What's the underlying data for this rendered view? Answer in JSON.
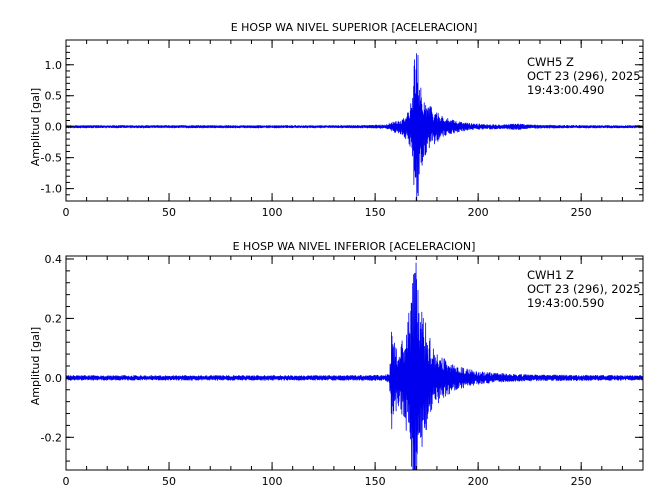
{
  "colors": {
    "trace": "#0000ee",
    "axes": "#000000",
    "background": "#ffffff"
  },
  "chart_data": [
    {
      "type": "line",
      "title": "E HOSP WA NIVEL SUPERIOR [ACELERACION]",
      "ylabel": "Amplitud [gal]",
      "xlabel": "",
      "xlim": [
        0,
        280
      ],
      "ylim": [
        -1.2,
        1.4
      ],
      "xticks": [
        0,
        50,
        100,
        150,
        200,
        250
      ],
      "xtick_labels": [
        "0",
        "50",
        "100",
        "150",
        "200",
        "250"
      ],
      "yticks": [
        -1.0,
        -0.5,
        0.0,
        0.5,
        1.0
      ],
      "ytick_labels": [
        "-1.0",
        "-0.5",
        "0.0",
        "0.5",
        "1.0"
      ],
      "grid": false,
      "info": {
        "station": "CWH5   Z",
        "date": "OCT 23 (296), 2025",
        "time": "19:43:00.490"
      },
      "series": [
        {
          "x": [
            0,
            20,
            40,
            60,
            80,
            100,
            120,
            140,
            155,
            158,
            160,
            163,
            166,
            168,
            169,
            170,
            171,
            172,
            173,
            175,
            178,
            182,
            186,
            190,
            195,
            200,
            205,
            210,
            215,
            218,
            222,
            230,
            245,
            260,
            280
          ],
          "envelope": [
            0.02,
            0.02,
            0.02,
            0.02,
            0.02,
            0.02,
            0.02,
            0.02,
            0.03,
            0.07,
            0.1,
            0.12,
            0.25,
            0.45,
            1.1,
            1.4,
            1.1,
            0.75,
            0.6,
            0.4,
            0.3,
            0.2,
            0.12,
            0.09,
            0.06,
            0.045,
            0.04,
            0.035,
            0.04,
            0.06,
            0.035,
            0.025,
            0.022,
            0.02,
            0.02
          ]
        }
      ]
    },
    {
      "type": "line",
      "title": "E HOSP WA NIVEL INFERIOR [ACELERACION]",
      "ylabel": "Amplitud [gal]",
      "xlabel": "",
      "xlim": [
        0,
        280
      ],
      "ylim": [
        -0.31,
        0.41
      ],
      "xticks": [
        0,
        50,
        100,
        150,
        200,
        250
      ],
      "xtick_labels": [
        "0",
        "50",
        "100",
        "150",
        "200",
        "250"
      ],
      "yticks": [
        -0.2,
        0.0,
        0.2,
        0.4
      ],
      "ytick_labels": [
        "-0.2",
        "0.0",
        "0.2",
        "0.4"
      ],
      "grid": false,
      "info": {
        "station": "CWH1   Z",
        "date": "OCT 23 (296), 2025",
        "time": "19:43:00.590"
      },
      "series": [
        {
          "x": [
            0,
            20,
            40,
            60,
            80,
            100,
            120,
            140,
            155,
            157,
            158,
            159,
            162,
            166,
            168,
            170,
            171,
            172,
            174,
            176,
            179,
            183,
            187,
            192,
            198,
            205,
            215,
            230,
            250,
            280
          ],
          "envelope": [
            0.008,
            0.008,
            0.008,
            0.008,
            0.008,
            0.008,
            0.008,
            0.008,
            0.009,
            0.02,
            0.19,
            0.12,
            0.1,
            0.2,
            0.32,
            0.4,
            0.33,
            0.26,
            0.2,
            0.15,
            0.1,
            0.07,
            0.05,
            0.035,
            0.025,
            0.018,
            0.013,
            0.01,
            0.009,
            0.008
          ]
        }
      ]
    }
  ]
}
